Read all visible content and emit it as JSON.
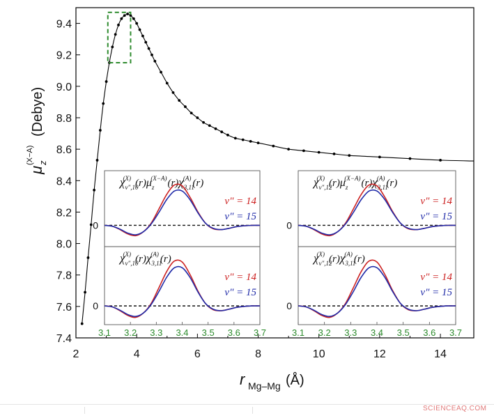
{
  "chart_data": {
    "type": "line",
    "xlabel_main": "r",
    "xlabel_sub": "Mg–Mg",
    "xlabel_unit": "(Å)",
    "ylabel_main": "μ",
    "ylabel_sub": "z",
    "ylabel_sup": "(X−A)",
    "ylabel_unit": "(Debye)",
    "xlim": [
      2,
      15
    ],
    "ylim": [
      7.4,
      9.5
    ],
    "xticks": [
      2,
      4,
      6,
      8,
      10,
      12,
      14
    ],
    "yticks": [
      7.4,
      7.6,
      7.8,
      8.0,
      8.2,
      8.4,
      8.6,
      8.8,
      9.0,
      9.2,
      9.4
    ],
    "xtick_labels": [
      "2",
      "4",
      "6",
      "8",
      "10",
      "12",
      "14"
    ],
    "ytick_labels": [
      "7.4",
      "7.6",
      "7.8",
      "8.0",
      "8.2",
      "8.4",
      "8.6",
      "8.8",
      "9.0",
      "9.2",
      "9.4"
    ],
    "series": [
      {
        "x": [
          2.2,
          2.3,
          2.4,
          2.5,
          2.6,
          2.7,
          2.8,
          2.9,
          3.0,
          3.1,
          3.2,
          3.3,
          3.4,
          3.5,
          3.6,
          3.7,
          3.8,
          3.9,
          4.0,
          4.1,
          4.2,
          4.3,
          4.4,
          4.5,
          4.6,
          4.8,
          5.0,
          5.2,
          5.4,
          5.6,
          5.8,
          6.0,
          6.2,
          6.4,
          6.6,
          6.8,
          7.0,
          7.25,
          7.5,
          7.75,
          8.0,
          8.5,
          9.0,
          9.5,
          10.0,
          10.5,
          11.0,
          12.0,
          13.0,
          14.0
        ],
        "y": [
          7.49,
          7.69,
          7.91,
          8.12,
          8.34,
          8.53,
          8.72,
          8.89,
          9.03,
          9.15,
          9.25,
          9.33,
          9.39,
          9.43,
          9.45,
          9.46,
          9.45,
          9.43,
          9.4,
          9.36,
          9.32,
          9.28,
          9.24,
          9.2,
          9.16,
          9.09,
          9.02,
          8.96,
          8.91,
          8.87,
          8.83,
          8.8,
          8.77,
          8.75,
          8.73,
          8.71,
          8.69,
          8.67,
          8.66,
          8.65,
          8.64,
          8.62,
          8.6,
          8.59,
          8.58,
          8.57,
          8.56,
          8.55,
          8.54,
          8.53
        ]
      }
    ],
    "highlight_box": {
      "x": [
        3.05,
        3.8
      ],
      "y": [
        9.15,
        9.47
      ]
    },
    "insets": [
      {
        "formula": "χ_{v\",10}^{(X)}(r) μ_z^{(X−A)}(r) χ_{3,11}^{(A)}(r)",
        "f_chi": "χ",
        "f_sub1": "v\",10",
        "f_sup1": "(X)",
        "f_r1": "(r)",
        "f_mu": "μ",
        "f_sub2": "z",
        "f_sup2": "(X−A)",
        "f_r2": "(r)",
        "f_chi2": "χ",
        "f_sub3": "3,11",
        "f_sup3": "(A)",
        "f_r3": "(r)",
        "zero": "0",
        "legend": [
          "v\" = 14",
          "v\" = 15"
        ]
      },
      {
        "formula": "χ_{v\",12}^{(X)}(r) μ_z^{(X−A)}(r) χ_{3,11}^{(A)}(r)",
        "f_chi": "χ",
        "f_sub1": "v\",12",
        "f_sup1": "(X)",
        "f_r1": "(r)",
        "f_mu": "μ",
        "f_sub2": "z",
        "f_sup2": "(X−A)",
        "f_r2": "(r)",
        "f_chi2": "χ",
        "f_sub3": "3,11",
        "f_sup3": "(A)",
        "f_r3": "(r)",
        "zero": "0",
        "legend": [
          "v\" = 14",
          "v\" = 15"
        ]
      },
      {
        "formula": "χ_{v\",10}^{(X)}(r) χ_{3,11}^{(A)}(r)",
        "f_chi": "χ",
        "f_sub1": "v\",10",
        "f_sup1": "(X)",
        "f_r1": "(r)",
        "f_chi2": "χ",
        "f_sub3": "3,11",
        "f_sup3": "(A)",
        "f_r3": "(r)",
        "zero": "0",
        "legend": [
          "v\" = 14",
          "v\" = 15"
        ]
      },
      {
        "formula": "χ_{v\",12}^{(X)}(r) χ_{3,11}^{(A)}(r)",
        "f_chi": "χ",
        "f_sub1": "v\",12",
        "f_sup1": "(X)",
        "f_r1": "(r)",
        "f_chi2": "χ",
        "f_sub3": "3,11",
        "f_sup3": "(A)",
        "f_r3": "(r)",
        "zero": "0",
        "legend": [
          "v\" = 14",
          "v\" = 15"
        ]
      }
    ],
    "inset_xticks": [
      "3.1",
      "3.2",
      "3.3",
      "3.4",
      "3.5",
      "3.6",
      "3.7"
    ],
    "inset_xlim": [
      3.1,
      3.7
    ],
    "inset_curves": {
      "x": [
        3.1,
        3.13,
        3.16,
        3.19,
        3.22,
        3.25,
        3.28,
        3.31,
        3.34,
        3.37,
        3.4,
        3.43,
        3.46,
        3.49,
        3.52,
        3.55,
        3.58,
        3.61,
        3.64,
        3.67,
        3.7
      ],
      "v14": [
        0.0,
        -0.02,
        -0.1,
        -0.2,
        -0.24,
        -0.15,
        0.05,
        0.38,
        0.72,
        0.94,
        0.92,
        0.66,
        0.32,
        0.05,
        -0.08,
        -0.1,
        -0.07,
        -0.03,
        -0.01,
        0.0,
        0.0
      ],
      "v15": [
        0.0,
        -0.02,
        -0.09,
        -0.18,
        -0.22,
        -0.15,
        0.03,
        0.3,
        0.6,
        0.8,
        0.8,
        0.6,
        0.3,
        0.05,
        -0.07,
        -0.1,
        -0.07,
        -0.03,
        -0.01,
        0.0,
        0.0
      ],
      "ylim": [
        -0.35,
        1.2
      ]
    },
    "colors": {
      "v14": "#cc2222",
      "v15": "#1f2aa8",
      "box": "#2e8b2e",
      "line": "#000000"
    }
  },
  "watermark": "SCIENCEAQ.COM"
}
